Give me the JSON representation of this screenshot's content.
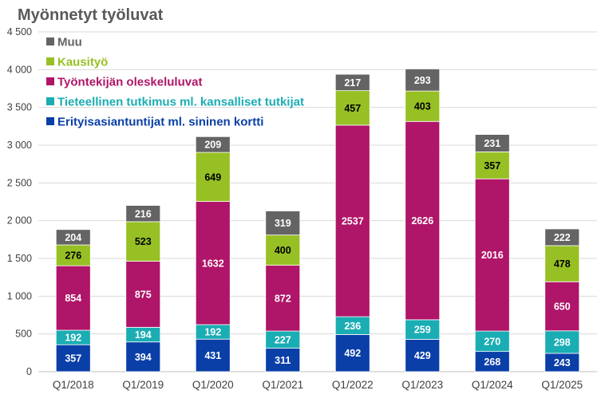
{
  "chart_data": {
    "type": "bar",
    "stacked": true,
    "title": "Myönnetyt työluvat",
    "categories": [
      "Q1/2018",
      "Q1/2019",
      "Q1/2020",
      "Q1/2021",
      "Q1/2022",
      "Q1/2023",
      "Q1/2024",
      "Q1/2025"
    ],
    "series": [
      {
        "name": "Erityisasiantuntijat ml. sininen kortti",
        "color": "#0A3FA8",
        "values": [
          357,
          394,
          431,
          311,
          492,
          429,
          268,
          243
        ]
      },
      {
        "name": "Tieteellinen tutkimus ml. kansalliset tutkijat",
        "color": "#1AADB3",
        "values": [
          192,
          194,
          192,
          227,
          236,
          259,
          270,
          298
        ]
      },
      {
        "name": "Työntekijän oleskeluluvat",
        "color": "#AF1568",
        "values": [
          854,
          875,
          1632,
          872,
          2537,
          2626,
          2016,
          650
        ]
      },
      {
        "name": "Kausityö",
        "color": "#97C024",
        "values": [
          276,
          523,
          649,
          400,
          457,
          403,
          357,
          478
        ]
      },
      {
        "name": "Muu",
        "color": "#646464",
        "values": [
          204,
          216,
          209,
          319,
          217,
          293,
          231,
          222
        ]
      }
    ],
    "legend_order": [
      "Muu",
      "Kausityö",
      "Työntekijän oleskeluluvat",
      "Tieteellinen tutkimus ml. kansalliset tutkijat",
      "Erityisasiantuntijat ml. sininen kortti"
    ],
    "ylim": [
      0,
      4500
    ],
    "yticks": [
      0,
      500,
      1000,
      1500,
      2000,
      2500,
      3000,
      3500,
      4000,
      4500
    ],
    "ytick_labels": [
      "0",
      "500",
      "1 000",
      "1 500",
      "2 000",
      "2 500",
      "3 000",
      "3 500",
      "4 000",
      "4 500"
    ],
    "grid": true,
    "legend_position": "top-left",
    "label_color_dark": "#000000",
    "label_color_light": "#ffffff"
  }
}
